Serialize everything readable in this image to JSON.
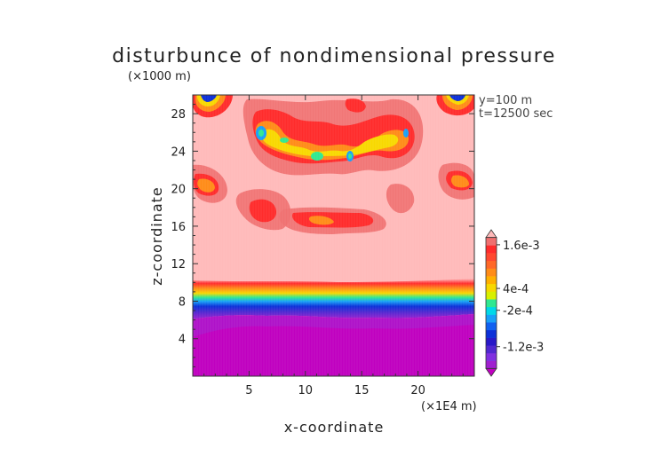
{
  "chart_data": {
    "type": "heatmap",
    "title": "disturbunce of nondimensional pressure",
    "xlabel": "x-coordinate",
    "ylabel": "z-coordinate",
    "x_unit": "(×1E4 m)",
    "y_unit": "(×1000 m)",
    "annotations": [
      "y=100 m",
      "t=12500 sec"
    ],
    "xlim": [
      0,
      25
    ],
    "ylim": [
      0,
      30
    ],
    "x_ticks": [
      5,
      10,
      15,
      20
    ],
    "y_ticks": [
      4,
      8,
      12,
      16,
      20,
      24,
      28
    ],
    "x_tick_labels": [
      "5",
      "10",
      "15",
      "20"
    ],
    "y_tick_labels": [
      "4",
      "8",
      "12",
      "16",
      "20",
      "24",
      "28"
    ],
    "colorbar_labels": [
      "1.6e-3",
      "4e-4",
      "-2e-4",
      "-1.2e-3"
    ],
    "colorbar_label_values": [
      0.0016,
      0.0004,
      -0.0002,
      -0.0012
    ],
    "colorbar_levels": [
      -0.0018,
      -0.0016,
      -0.0014,
      -0.0012,
      -0.001,
      -0.0008,
      -0.0006,
      -0.0004,
      -0.0002,
      0,
      0.0002,
      0.0004,
      0.0006,
      0.0008,
      0.001,
      0.0012,
      0.0014,
      0.0016,
      0.0018
    ],
    "colorbar_colors": [
      "#c000c0",
      "#a020d0",
      "#8030e0",
      "#5028d0",
      "#2818c8",
      "#0c30d8",
      "#1060f0",
      "#18a0f8",
      "#00d8e8",
      "#30e890",
      "#d8f000",
      "#f8d800",
      "#ffb000",
      "#ff8c18",
      "#ff6828",
      "#ff4830",
      "#ff2c2c",
      "#f07070",
      "#ffbaba"
    ],
    "regions": [
      {
        "name": "lower negative layer",
        "z_range": [
          0,
          8
        ],
        "value": -0.0018
      },
      {
        "name": "transition band",
        "z_range": [
          8,
          10
        ],
        "value_range": [
          -0.0016,
          0.0018
        ]
      },
      {
        "name": "upper positive region",
        "z_range": [
          10,
          30
        ],
        "value": 0.0018
      },
      {
        "name": "wave crests",
        "z_range": [
          15.5,
          30
        ],
        "value_range": [
          0.0004,
          0.0016
        ]
      }
    ]
  }
}
